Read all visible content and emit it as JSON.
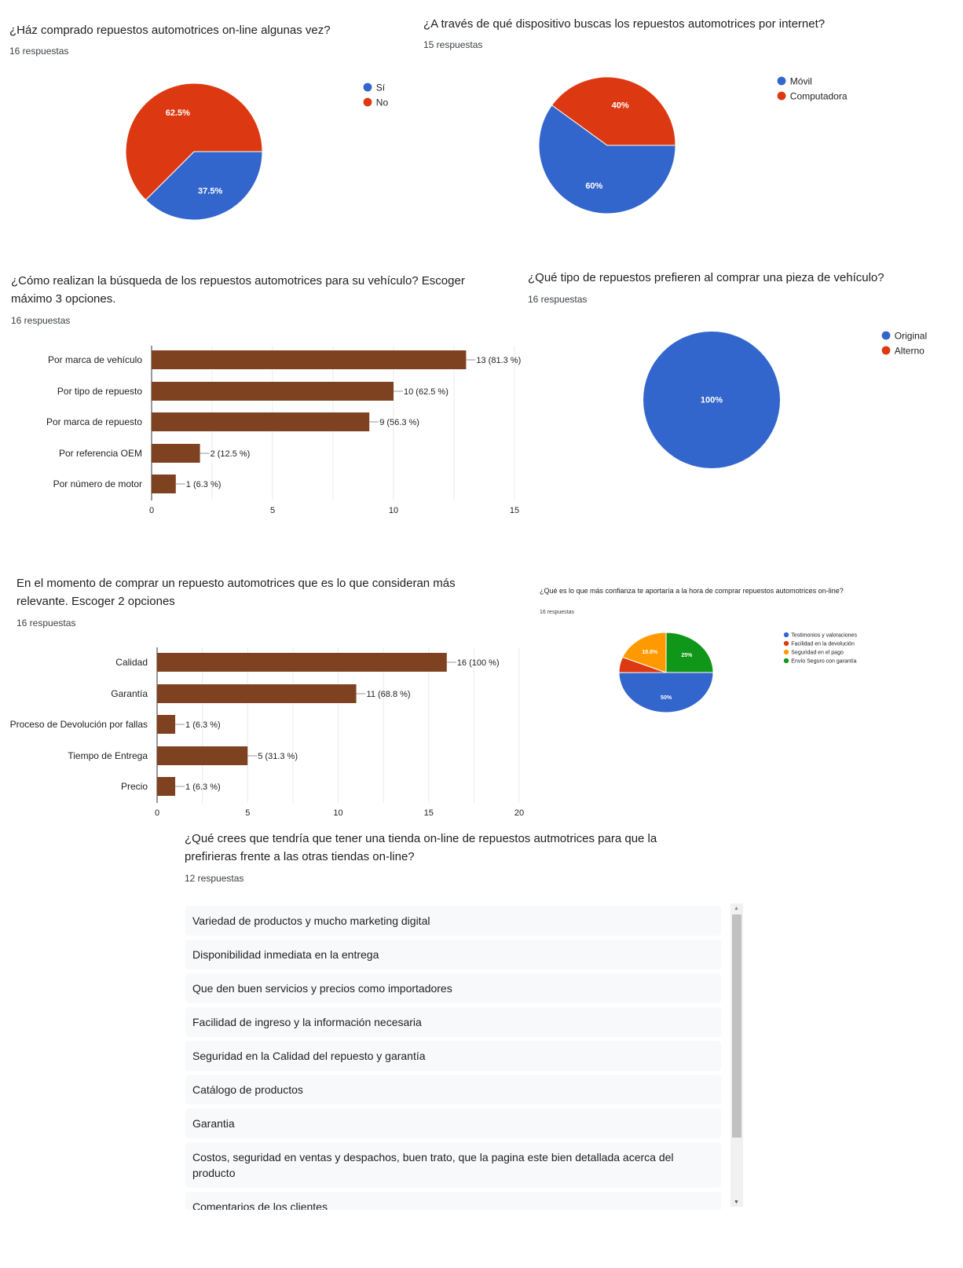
{
  "colors": {
    "blue": "#3366cc",
    "red": "#dc3912",
    "orange": "#ff9900",
    "green": "#109618",
    "bar": "#7f4220"
  },
  "q1": {
    "title": "¿Ház comprado repuestos automotrices on-line algunas vez?",
    "count": "16 respuestas"
  },
  "q2": {
    "title": "¿A través de qué dispositivo buscas los repuestos automotrices por internet?",
    "count": "15 respuestas"
  },
  "q3": {
    "title": "¿Cómo realizan la búsqueda de los repuestos automotrices para su vehículo? Escoger máximo 3 opciones.",
    "count": "16 respuestas"
  },
  "q4": {
    "title": "¿Qué tipo de repuestos prefieren al comprar una pieza de vehículo?",
    "count": "16 respuestas"
  },
  "q5": {
    "title": "En el momento de comprar un repuesto automotrices que es lo que consideran más relevante. Escoger 2 opciones",
    "count": "16 respuestas"
  },
  "q6": {
    "title": "¿Qué es lo que más confianza te aportaría a la hora de comprar repuestos automotrices on-line?",
    "count": "16 respuestas"
  },
  "q7": {
    "title": "¿Qué crees que tendría que tener una tienda on-line de repuestos autmotrices para que la prefirieras frente a las otras tiendas on-line?",
    "count": "12 respuestas",
    "responses": [
      "Variedad de productos y mucho marketing digital",
      "Disponibilidad inmediata en la entrega",
      "Que den buen servicios y precios como importadores",
      "Facilidad de ingreso y la información necesaria",
      "Seguridad en la Calidad del repuesto y garantía",
      "Catálogo de productos",
      "Garantia",
      "Costos, seguridad en ventas y despachos, buen trato, que la pagina este bien detallada acerca del producto",
      "Comentarios de los clientes"
    ]
  },
  "chart_data": [
    {
      "type": "pie",
      "id": "q1",
      "labels": [
        "Sí",
        "No"
      ],
      "values": [
        37.5,
        62.5
      ],
      "slice_labels": [
        "37.5%",
        "62.5%"
      ],
      "colors": [
        "#3366cc",
        "#dc3912"
      ],
      "legend": "right"
    },
    {
      "type": "pie",
      "id": "q2",
      "labels": [
        "Móvil",
        "Computadora"
      ],
      "values": [
        60,
        40
      ],
      "slice_labels": [
        "60%",
        "40%"
      ],
      "colors": [
        "#3366cc",
        "#dc3912"
      ],
      "legend": "right"
    },
    {
      "type": "bar",
      "id": "q3",
      "orientation": "horizontal",
      "categories": [
        "Por marca de vehículo",
        "Por tipo de repuesto",
        "Por marca de repuesto",
        "Por referencia OEM",
        "Por número de motor"
      ],
      "values": [
        13,
        10,
        9,
        2,
        1
      ],
      "data_labels": [
        "13 (81.3 %)",
        "10 (62.5 %)",
        "9 (56.3 %)",
        "2 (12.5 %)",
        "1 (6.3 %)"
      ],
      "xlim": [
        0,
        15
      ],
      "xticks": [
        "0",
        "5",
        "10",
        "15"
      ]
    },
    {
      "type": "pie",
      "id": "q4",
      "labels": [
        "Original",
        "Alterno"
      ],
      "values": [
        100,
        0
      ],
      "slice_labels": [
        "100%"
      ],
      "colors": [
        "#3366cc",
        "#dc3912"
      ],
      "legend": "right"
    },
    {
      "type": "bar",
      "id": "q5",
      "orientation": "horizontal",
      "categories": [
        "Calidad",
        "Garantía",
        "Proceso de Devolución por fallas",
        "Tiempo de Entrega",
        "Precio"
      ],
      "values": [
        16,
        11,
        1,
        5,
        1
      ],
      "data_labels": [
        "16 (100 %)",
        "11 (68.8 %)",
        "1 (6.3 %)",
        "5 (31.3 %)",
        "1 (6.3 %)"
      ],
      "xlim": [
        0,
        20
      ],
      "xticks": [
        "0",
        "5",
        "10",
        "15",
        "20"
      ]
    },
    {
      "type": "pie",
      "id": "q6",
      "labels": [
        "Testimonios y valoraciones",
        "Facilidad en la devolución",
        "Seguridad en el pago",
        "Envío Seguro con garantía"
      ],
      "values": [
        50,
        6.3,
        18.8,
        25
      ],
      "slice_labels": [
        "50%",
        "",
        "18.8%",
        "25%"
      ],
      "colors": [
        "#3366cc",
        "#dc3912",
        "#ff9900",
        "#109618"
      ],
      "legend": "right"
    }
  ]
}
